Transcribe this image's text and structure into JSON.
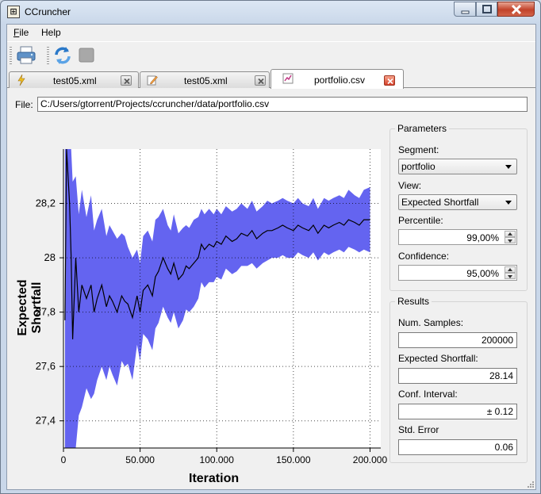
{
  "window": {
    "title": "CCruncher",
    "app_icon": "ccruncher-app-icon",
    "colors": {
      "close": "#c2422a"
    }
  },
  "menu": [
    {
      "label": "File",
      "accel": "F",
      "rest": "ile"
    },
    {
      "label": "Help",
      "accel": "",
      "rest": "Help"
    }
  ],
  "toolbar": {
    "icons": [
      "printer-icon",
      "refresh-icon",
      "stop-icon"
    ]
  },
  "tabs": [
    {
      "label": "test05.xml",
      "icon": "lightning-icon",
      "active": false
    },
    {
      "label": "test05.xml",
      "icon": "edit-document-icon",
      "active": false
    },
    {
      "label": "portfolio.csv",
      "icon": "chart-document-icon",
      "active": true
    }
  ],
  "file": {
    "label": "File:",
    "path": "C:/Users/gtorrent/Projects/ccruncher/data/portfolio.csv"
  },
  "parameters": {
    "title": "Parameters",
    "segment_label": "Segment:",
    "segment_value": "portfolio",
    "view_label": "View:",
    "view_value": "Expected Shortfall",
    "percentile_label": "Percentile:",
    "percentile_value": "99,00%",
    "confidence_label": "Confidence:",
    "confidence_value": "95,00%"
  },
  "results": {
    "title": "Results",
    "samples_label": "Num. Samples:",
    "samples_value": "200000",
    "es_label": "Expected Shortfall:",
    "es_value": "28.14",
    "ci_label": "Conf. Interval:",
    "ci_value": "± 0.12",
    "stderr_label": "Std. Error",
    "stderr_value": "0.06"
  },
  "chart_data": {
    "type": "line",
    "title": "",
    "xlabel": "Iteration",
    "ylabel": "Expected Shortfall",
    "xlim": [
      0,
      207000
    ],
    "ylim": [
      27.3,
      28.4
    ],
    "xticks": [
      0,
      50000,
      100000,
      150000,
      200000
    ],
    "xtick_labels": [
      "0",
      "50.000",
      "100.000",
      "150.000",
      "200.000"
    ],
    "yticks": [
      27.4,
      27.6,
      27.8,
      28.0,
      28.2
    ],
    "ytick_labels": [
      "27,4",
      "27,6",
      "27,8",
      "28",
      "28,2"
    ],
    "grid": true,
    "colors": {
      "band": "#6464f0",
      "line": "#000000"
    },
    "series": [
      {
        "x": [
          1000,
          2000,
          3000,
          4000,
          5000,
          6000,
          8000,
          10000,
          12000,
          15000,
          18000,
          20000,
          22000,
          25000,
          28000,
          30000,
          32000,
          35000,
          38000,
          40000,
          42000,
          45000,
          48000,
          50000,
          52000,
          55000,
          58000,
          60000,
          62000,
          65000,
          68000,
          70000,
          72000,
          75000,
          78000,
          80000,
          82000,
          85000,
          88000,
          90000,
          92000,
          95000,
          98000,
          100000,
          103000,
          106000,
          110000,
          113000,
          116000,
          120000,
          123000,
          126000,
          130000,
          133000,
          136000,
          140000,
          143000,
          146000,
          150000,
          153000,
          156000,
          160000,
          163000,
          166000,
          170000,
          173000,
          176000,
          180000,
          183000,
          186000,
          190000,
          193000,
          196000,
          200000
        ],
        "values": [
          27.77,
          28.4,
          28.3,
          28.2,
          28.0,
          27.7,
          28.0,
          27.8,
          27.9,
          27.85,
          27.9,
          27.8,
          27.85,
          27.9,
          27.82,
          27.86,
          27.84,
          27.8,
          27.86,
          27.84,
          27.83,
          27.78,
          27.86,
          27.8,
          27.88,
          27.9,
          27.86,
          27.93,
          27.95,
          28.0,
          27.96,
          27.94,
          27.98,
          27.92,
          27.94,
          27.97,
          27.96,
          27.98,
          28.0,
          28.05,
          28.03,
          28.05,
          28.04,
          28.06,
          28.05,
          28.08,
          28.06,
          28.07,
          28.09,
          28.08,
          28.1,
          28.07,
          28.09,
          28.1,
          28.1,
          28.11,
          28.12,
          28.11,
          28.1,
          28.12,
          28.11,
          28.1,
          28.12,
          28.09,
          28.12,
          28.11,
          28.12,
          28.13,
          28.12,
          28.14,
          28.13,
          28.12,
          28.14,
          28.14
        ]
      }
    ],
    "band": {
      "x": [
        1000,
        2000,
        3000,
        4000,
        5000,
        6000,
        8000,
        10000,
        12000,
        15000,
        18000,
        20000,
        22000,
        25000,
        28000,
        30000,
        32000,
        35000,
        38000,
        40000,
        42000,
        45000,
        48000,
        50000,
        52000,
        55000,
        58000,
        60000,
        62000,
        65000,
        68000,
        70000,
        72000,
        75000,
        78000,
        80000,
        82000,
        85000,
        88000,
        90000,
        92000,
        95000,
        98000,
        100000,
        103000,
        106000,
        110000,
        113000,
        116000,
        120000,
        123000,
        126000,
        130000,
        133000,
        136000,
        140000,
        143000,
        146000,
        150000,
        153000,
        156000,
        160000,
        163000,
        166000,
        170000,
        173000,
        176000,
        180000,
        183000,
        186000,
        190000,
        193000,
        196000,
        200000
      ],
      "upper": [
        28.4,
        28.4,
        28.4,
        28.4,
        28.4,
        28.28,
        28.3,
        28.16,
        28.25,
        28.15,
        28.23,
        28.1,
        28.14,
        28.18,
        28.08,
        28.12,
        28.1,
        28.07,
        28.09,
        28.08,
        28.04,
        28.0,
        28.03,
        27.98,
        28.08,
        28.1,
        28.06,
        28.14,
        28.15,
        28.18,
        28.12,
        28.1,
        28.16,
        28.09,
        28.11,
        28.12,
        28.11,
        28.14,
        28.15,
        28.18,
        28.16,
        28.18,
        28.16,
        28.18,
        28.16,
        28.19,
        28.17,
        28.18,
        28.2,
        28.18,
        28.21,
        28.17,
        28.19,
        28.21,
        28.2,
        28.21,
        28.22,
        28.21,
        28.2,
        28.22,
        28.2,
        28.19,
        28.22,
        28.18,
        28.22,
        28.21,
        28.22,
        28.23,
        28.22,
        28.25,
        28.23,
        28.22,
        28.25,
        28.26
      ],
      "lower": [
        27.3,
        27.3,
        27.3,
        27.3,
        27.3,
        27.3,
        27.3,
        27.42,
        27.45,
        27.52,
        27.48,
        27.5,
        27.55,
        27.6,
        27.55,
        27.6,
        27.57,
        27.53,
        27.62,
        27.6,
        27.61,
        27.55,
        27.68,
        27.62,
        27.72,
        27.7,
        27.66,
        27.74,
        27.76,
        27.82,
        27.78,
        27.76,
        27.8,
        27.74,
        27.77,
        27.81,
        27.8,
        27.82,
        27.85,
        27.91,
        27.89,
        27.91,
        27.91,
        27.93,
        27.92,
        27.96,
        27.94,
        27.95,
        27.97,
        27.97,
        27.98,
        27.96,
        27.98,
        27.99,
        28.0,
        28.0,
        28.01,
        28.0,
        28.0,
        28.02,
        28.01,
        28.0,
        28.02,
        27.99,
        28.02,
        28.01,
        28.02,
        28.03,
        28.02,
        28.04,
        28.03,
        28.02,
        28.03,
        28.02
      ]
    }
  }
}
